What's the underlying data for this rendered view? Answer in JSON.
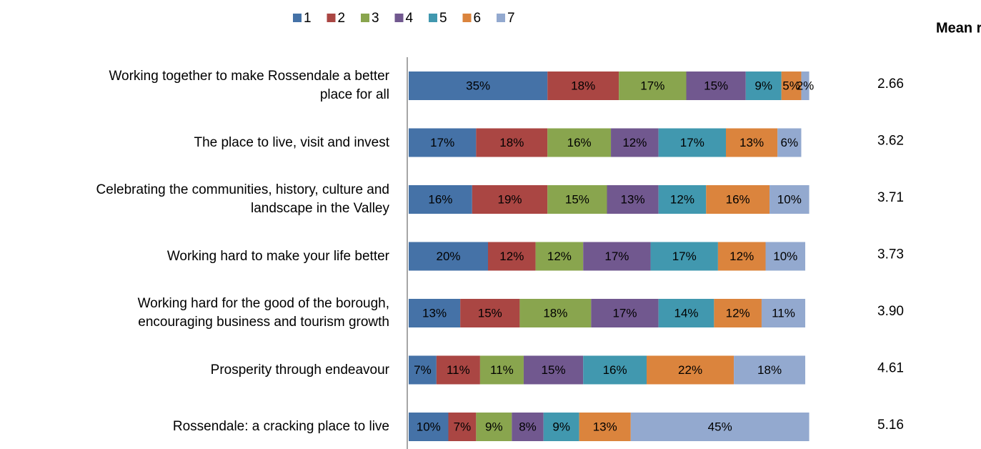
{
  "chart_data": {
    "type": "stacked_bar_horizontal",
    "categories": [
      "Working together to make Rossendale a better\nplace for all",
      "The place to live, visit and invest",
      "Celebrating the communities, history, culture and\nlandscape in the Valley",
      "Working hard to make your life better",
      "Working hard for the good of the borough,\nencouraging business and tourism growth",
      "Prosperity through endeavour",
      "Rossendale: a cracking place to live"
    ],
    "series": [
      {
        "name": "1",
        "color": "#4572A7",
        "values": [
          35,
          17,
          16,
          20,
          13,
          7,
          10
        ],
        "value_labels": [
          "35%",
          "17%",
          "16%",
          "20%",
          "13%",
          "7%",
          "10%"
        ]
      },
      {
        "name": "2",
        "color": "#AA4643",
        "values": [
          18,
          18,
          19,
          12,
          15,
          11,
          7
        ],
        "value_labels": [
          "18%",
          "18%",
          "19%",
          "12%",
          "15%",
          "11%",
          "7%"
        ]
      },
      {
        "name": "3",
        "color": "#89A54E",
        "values": [
          17,
          16,
          15,
          12,
          18,
          11,
          9
        ],
        "value_labels": [
          "17%",
          "16%",
          "15%",
          "12%",
          "18%",
          "11%",
          "9%"
        ]
      },
      {
        "name": "4",
        "color": "#71588F",
        "values": [
          15,
          12,
          13,
          17,
          17,
          15,
          8
        ],
        "value_labels": [
          "15%",
          "12%",
          "13%",
          "17%",
          "17%",
          "15%",
          "8%"
        ]
      },
      {
        "name": "5",
        "color": "#4198AF",
        "values": [
          9,
          17,
          12,
          17,
          14,
          16,
          9
        ],
        "value_labels": [
          "9%",
          "17%",
          "12%",
          "17%",
          "14%",
          "16%",
          "9%"
        ]
      },
      {
        "name": "6",
        "color": "#DB843D",
        "values": [
          5,
          13,
          16,
          12,
          12,
          22,
          13
        ],
        "value_labels": [
          "5%",
          "13%",
          "16%",
          "12%",
          "12%",
          "22%",
          "13%"
        ]
      },
      {
        "name": "7",
        "color": "#93A9CF",
        "values": [
          2,
          6,
          10,
          10,
          11,
          18,
          45
        ],
        "value_labels": [
          "2%",
          "6%",
          "10%",
          "10%",
          "11%",
          "18%",
          "45%"
        ]
      }
    ],
    "xlim": [
      0,
      100
    ],
    "legend": "top",
    "mean_rank": {
      "title": "Mean rank:",
      "values": [
        2.66,
        3.62,
        3.71,
        3.73,
        3.9,
        4.61,
        5.16
      ],
      "value_labels": [
        "2.66",
        "3.62",
        "3.71",
        "3.73",
        "3.90",
        "4.61",
        "5.16"
      ]
    }
  }
}
